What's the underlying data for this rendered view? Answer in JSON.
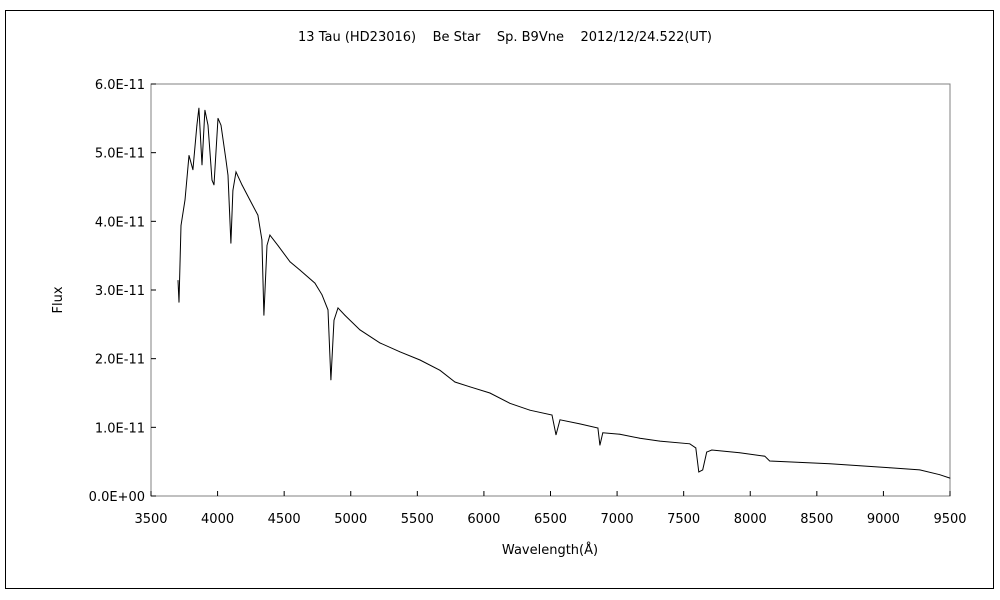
{
  "chart_data": {
    "type": "line",
    "title": "13 Tau (HD23016)    Be Star    Sp. B9Vne    2012/12/24.522(UT)",
    "xlabel": "Wavelength(Å)",
    "ylabel": "Flux",
    "xlim": [
      3500,
      9500
    ],
    "ylim": [
      0,
      6e-11
    ],
    "xticks": [
      "3500",
      "4000",
      "4500",
      "5000",
      "5500",
      "6000",
      "6500",
      "7000",
      "7500",
      "8000",
      "8500",
      "9000",
      "9500"
    ],
    "yticks": [
      "0.0E+00",
      "1.0E-11",
      "2.0E-11",
      "3.0E-11",
      "4.0E-11",
      "5.0E-11",
      "6.0E-11"
    ],
    "grid": false,
    "legend": "none",
    "line_color": "#000000",
    "series": [
      {
        "x": [
          3703,
          3710,
          3725,
          3755,
          3785,
          3815,
          3845,
          3860,
          3883,
          3905,
          3928,
          3958,
          3973,
          4003,
          4026,
          4063,
          4078,
          4100,
          4115,
          4138,
          4183,
          4243,
          4303,
          4333,
          4348,
          4371,
          4393,
          4453,
          4544,
          4619,
          4731,
          4784,
          4829,
          4851,
          4874,
          4904,
          4957,
          5069,
          5219,
          5369,
          5520,
          5670,
          5782,
          5895,
          6045,
          6195,
          6345,
          6511,
          6541,
          6571,
          6721,
          6856,
          6871,
          6893,
          7021,
          7171,
          7321,
          7546,
          7591,
          7614,
          7643,
          7673,
          7711,
          7921,
          8109,
          8146,
          8372,
          8598,
          8823,
          9048,
          9273,
          9423,
          9500
        ],
        "y": [
          3.14e-11,
          2.82e-11,
          3.94e-11,
          4.31e-11,
          4.96e-11,
          4.75e-11,
          5.4e-11,
          5.65e-11,
          4.82e-11,
          5.62e-11,
          5.4e-11,
          4.6e-11,
          4.53e-11,
          5.5e-11,
          5.4e-11,
          4.89e-11,
          4.67e-11,
          3.68e-11,
          4.45e-11,
          4.72e-11,
          4.53e-11,
          4.31e-11,
          4.09e-11,
          3.73e-11,
          2.63e-11,
          3.65e-11,
          3.8e-11,
          3.65e-11,
          3.41e-11,
          3.29e-11,
          3.1e-11,
          2.93e-11,
          2.71e-11,
          1.69e-11,
          2.56e-11,
          2.74e-11,
          2.63e-11,
          2.42e-11,
          2.23e-11,
          2.1e-11,
          1.98e-11,
          1.83e-11,
          1.66e-11,
          1.59e-11,
          1.5e-11,
          1.35e-11,
          1.25e-11,
          1.18e-11,
          8.9e-12,
          1.11e-11,
          1.05e-11,
          9.9e-12,
          7.4e-12,
          9.2e-12,
          9e-12,
          8.4e-12,
          8e-12,
          7.6e-12,
          7e-12,
          3.5e-12,
          3.8e-12,
          6.4e-12,
          6.7e-12,
          6.3e-12,
          5.8e-12,
          5.1e-12,
          4.9e-12,
          4.7e-12,
          4.4e-12,
          4.1e-12,
          3.8e-12,
          3.1e-12,
          2.6e-12
        ]
      }
    ]
  }
}
